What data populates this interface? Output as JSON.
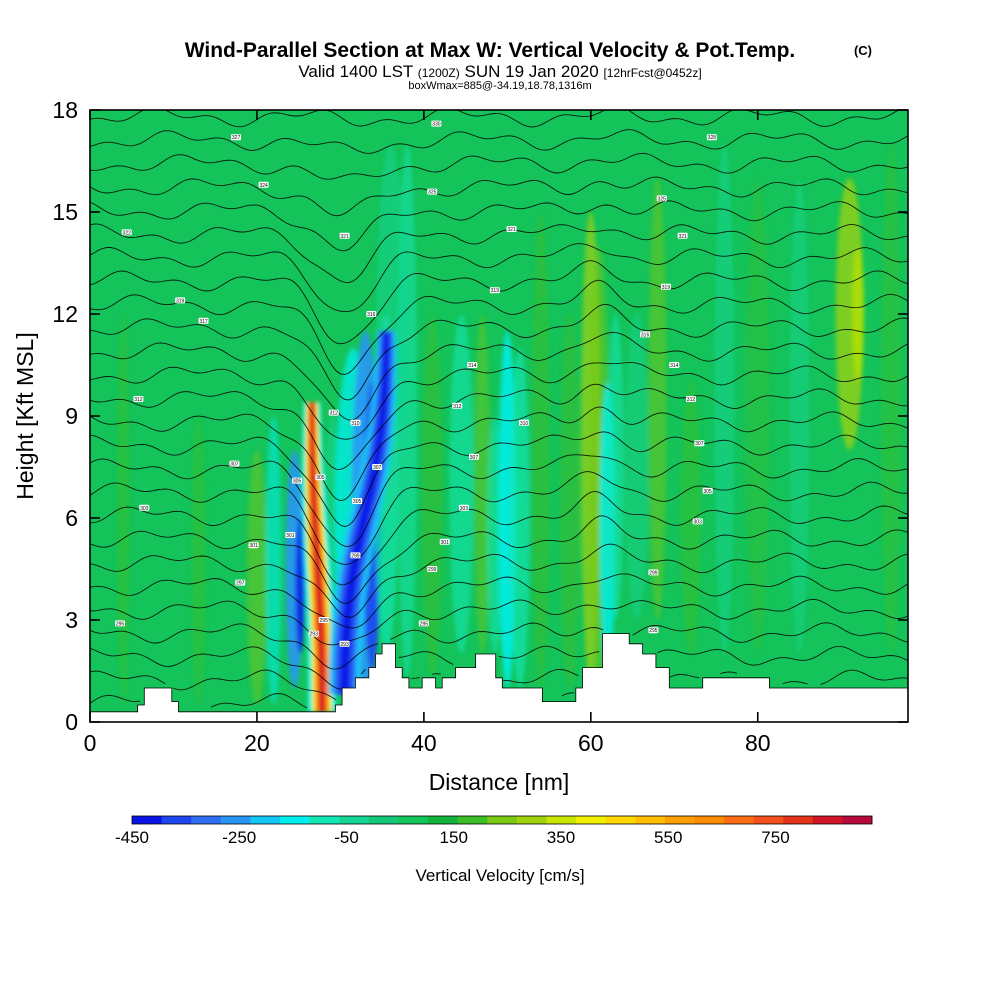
{
  "chart_data": {
    "type": "heatmap",
    "title": "Wind-Parallel Section at Max W: Vertical Velocity & Pot.Temp.",
    "title_mark": "(C)",
    "subtitle_parts": [
      "Valid 1400 LST",
      "(1200Z)",
      "SUN 19 Jan 2020",
      "[12hrFcst@0452z]"
    ],
    "subtitle2": "boxWmax=885@-34.19,18.78,1316m",
    "xlabel": "Distance [nm]",
    "ylabel": "Height [Kft MSL]",
    "xlim": [
      0,
      98
    ],
    "ylim": [
      0,
      18
    ],
    "x_ticks": [
      0,
      20,
      40,
      60,
      80
    ],
    "x_tick_labels": [
      "0",
      "20",
      "40",
      "60",
      "80"
    ],
    "y_ticks": [
      0,
      3,
      6,
      9,
      12,
      15,
      18
    ],
    "y_tick_labels": [
      "0",
      "3",
      "6",
      "9",
      "12",
      "15",
      "18"
    ],
    "colorbar": {
      "label": "Vertical Velocity [cm/s]",
      "min": -450,
      "max": 930,
      "step": 60,
      "tick_values": [
        -450,
        -250,
        -50,
        150,
        350,
        550,
        750
      ],
      "tick_labels": [
        "-450",
        "-250",
        "-50",
        "150",
        "350",
        "550",
        "750"
      ],
      "colors": [
        "#0a14e6",
        "#1e46f0",
        "#2d6ef5",
        "#2896f5",
        "#14c8f5",
        "#00f0f0",
        "#14e6b4",
        "#14d796",
        "#14c878",
        "#14c35a",
        "#14b43c",
        "#3cbe28",
        "#78c814",
        "#a0d20a",
        "#c8e600",
        "#f0f000",
        "#ffd700",
        "#ffbe00",
        "#ffa000",
        "#ff8c00",
        "#ff6e14",
        "#f5501e",
        "#e63219",
        "#d21428",
        "#b40a3c"
      ]
    },
    "w_features": [
      {
        "x": 26.8,
        "y0": 0.3,
        "y1": 9.1,
        "w_peak": 885
      },
      {
        "x": 33.0,
        "y0": 0.8,
        "y1": 11.5,
        "w_peak": -420
      },
      {
        "x": 50.0,
        "y0": 0.6,
        "y1": 11.5,
        "w_peak": -80
      },
      {
        "x": 60.0,
        "y0": 0.9,
        "y1": 15.0,
        "w_peak": 300
      },
      {
        "x": 91.0,
        "y0": 8.0,
        "y1": 16.0,
        "w_peak": 250
      }
    ],
    "terrain": [
      [
        0,
        0.3
      ],
      [
        5.7,
        0.3
      ],
      [
        5.7,
        0.5
      ],
      [
        6.5,
        0.5
      ],
      [
        6.5,
        1.0
      ],
      [
        9.8,
        1.0
      ],
      [
        9.8,
        0.6
      ],
      [
        10.6,
        0.6
      ],
      [
        10.6,
        0.3
      ],
      [
        29.4,
        0.3
      ],
      [
        29.4,
        0.5
      ],
      [
        30.2,
        0.5
      ],
      [
        30.2,
        1.0
      ],
      [
        31.8,
        1.0
      ],
      [
        31.8,
        1.3
      ],
      [
        33.4,
        1.3
      ],
      [
        33.4,
        1.6
      ],
      [
        34.2,
        1.6
      ],
      [
        34.2,
        2.0
      ],
      [
        35.0,
        2.0
      ],
      [
        35.0,
        2.3
      ],
      [
        36.6,
        2.3
      ],
      [
        36.6,
        1.6
      ],
      [
        37.4,
        1.6
      ],
      [
        37.4,
        1.3
      ],
      [
        38.2,
        1.3
      ],
      [
        38.2,
        1.0
      ],
      [
        39.8,
        1.0
      ],
      [
        39.8,
        1.3
      ],
      [
        41.4,
        1.3
      ],
      [
        41.4,
        1.0
      ],
      [
        42.2,
        1.0
      ],
      [
        42.2,
        1.3
      ],
      [
        43.8,
        1.3
      ],
      [
        43.8,
        1.6
      ],
      [
        46.2,
        1.6
      ],
      [
        46.2,
        2.0
      ],
      [
        48.6,
        2.0
      ],
      [
        48.6,
        1.3
      ],
      [
        49.4,
        1.3
      ],
      [
        49.4,
        1.0
      ],
      [
        54.2,
        1.0
      ],
      [
        54.2,
        0.6
      ],
      [
        58.2,
        0.6
      ],
      [
        58.2,
        1.0
      ],
      [
        59.0,
        1.0
      ],
      [
        59.0,
        1.6
      ],
      [
        61.4,
        1.6
      ],
      [
        61.4,
        2.6
      ],
      [
        64.6,
        2.6
      ],
      [
        64.6,
        2.3
      ],
      [
        66.2,
        2.3
      ],
      [
        66.2,
        2.0
      ],
      [
        67.8,
        2.0
      ],
      [
        67.8,
        1.6
      ],
      [
        69.4,
        1.6
      ],
      [
        69.4,
        1.0
      ],
      [
        73.4,
        1.0
      ],
      [
        73.4,
        1.3
      ],
      [
        81.4,
        1.3
      ],
      [
        81.4,
        1.0
      ],
      [
        98,
        1.0
      ]
    ],
    "theta_levels": 26,
    "theta_labels": [
      {
        "x": 17.5,
        "y": 17.2,
        "t": "327"
      },
      {
        "x": 41.5,
        "y": 17.6,
        "t": "330"
      },
      {
        "x": 74.5,
        "y": 17.2,
        "t": "328"
      },
      {
        "x": 20.8,
        "y": 15.8,
        "t": "324"
      },
      {
        "x": 41.0,
        "y": 15.6,
        "t": "325"
      },
      {
        "x": 68.5,
        "y": 15.4,
        "t": "325"
      },
      {
        "x": 4.4,
        "y": 14.4,
        "t": "322"
      },
      {
        "x": 30.5,
        "y": 14.3,
        "t": "321"
      },
      {
        "x": 50.5,
        "y": 14.5,
        "t": "321"
      },
      {
        "x": 71.0,
        "y": 14.3,
        "t": "321"
      },
      {
        "x": 10.8,
        "y": 12.4,
        "t": "319"
      },
      {
        "x": 48.5,
        "y": 12.7,
        "t": "319"
      },
      {
        "x": 69.0,
        "y": 12.8,
        "t": "319"
      },
      {
        "x": 13.6,
        "y": 11.8,
        "t": "317"
      },
      {
        "x": 33.7,
        "y": 12.0,
        "t": "316"
      },
      {
        "x": 66.5,
        "y": 11.4,
        "t": "316"
      },
      {
        "x": 45.8,
        "y": 10.5,
        "t": "314"
      },
      {
        "x": 70.0,
        "y": 10.5,
        "t": "314"
      },
      {
        "x": 5.8,
        "y": 9.5,
        "t": "312"
      },
      {
        "x": 29.2,
        "y": 9.1,
        "t": "312"
      },
      {
        "x": 44.0,
        "y": 9.3,
        "t": "312"
      },
      {
        "x": 72.0,
        "y": 9.5,
        "t": "312"
      },
      {
        "x": 31.8,
        "y": 8.8,
        "t": "310"
      },
      {
        "x": 52.0,
        "y": 8.8,
        "t": "310"
      },
      {
        "x": 17.3,
        "y": 7.6,
        "t": "307"
      },
      {
        "x": 34.4,
        "y": 7.5,
        "t": "307"
      },
      {
        "x": 46.0,
        "y": 7.8,
        "t": "307"
      },
      {
        "x": 73.0,
        "y": 8.2,
        "t": "307"
      },
      {
        "x": 24.8,
        "y": 7.1,
        "t": "305"
      },
      {
        "x": 27.6,
        "y": 7.2,
        "t": "305"
      },
      {
        "x": 32.0,
        "y": 6.5,
        "t": "305"
      },
      {
        "x": 74.0,
        "y": 6.8,
        "t": "305"
      },
      {
        "x": 6.5,
        "y": 6.3,
        "t": "303"
      },
      {
        "x": 44.8,
        "y": 6.3,
        "t": "303"
      },
      {
        "x": 72.8,
        "y": 5.9,
        "t": "303"
      },
      {
        "x": 24.0,
        "y": 5.5,
        "t": "301"
      },
      {
        "x": 19.6,
        "y": 5.2,
        "t": "301"
      },
      {
        "x": 42.5,
        "y": 5.3,
        "t": "301"
      },
      {
        "x": 31.8,
        "y": 4.9,
        "t": "299"
      },
      {
        "x": 41.0,
        "y": 4.5,
        "t": "299"
      },
      {
        "x": 67.5,
        "y": 4.4,
        "t": "299"
      },
      {
        "x": 18.0,
        "y": 4.1,
        "t": "297"
      },
      {
        "x": 3.6,
        "y": 2.9,
        "t": "295"
      },
      {
        "x": 28.0,
        "y": 3.0,
        "t": "295"
      },
      {
        "x": 40.0,
        "y": 2.9,
        "t": "295"
      },
      {
        "x": 67.5,
        "y": 2.7,
        "t": "295"
      },
      {
        "x": 26.8,
        "y": 2.6,
        "t": "293"
      },
      {
        "x": 30.5,
        "y": 2.3,
        "t": "293"
      }
    ]
  }
}
